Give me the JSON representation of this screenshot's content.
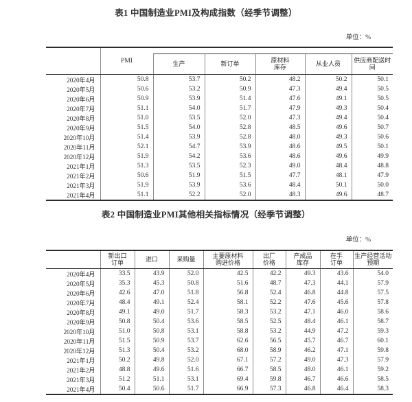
{
  "table1": {
    "title": "表1 中国制造业PMI及构成指数（经季节调整）",
    "unit": "单位：%",
    "pmi_header": "PMI",
    "sub_headers": [
      "生产",
      "新订单",
      "原材料库存",
      "从业人员",
      "供应商配送时间"
    ],
    "rows": [
      {
        "date": "2020年4月",
        "values": [
          "50.8",
          "53.7",
          "50.2",
          "48.2",
          "50.2",
          "50.1"
        ]
      },
      {
        "date": "2020年5月",
        "values": [
          "50.6",
          "53.2",
          "50.9",
          "47.3",
          "49.4",
          "50.5"
        ]
      },
      {
        "date": "2020年6月",
        "values": [
          "50.9",
          "53.9",
          "51.4",
          "47.6",
          "49.1",
          "50.5"
        ]
      },
      {
        "date": "2020年7月",
        "values": [
          "51.1",
          "54.0",
          "51.7",
          "47.9",
          "49.3",
          "50.4"
        ]
      },
      {
        "date": "2020年8月",
        "values": [
          "51.0",
          "53.5",
          "52.0",
          "47.3",
          "49.4",
          "50.4"
        ]
      },
      {
        "date": "2020年9月",
        "values": [
          "51.5",
          "54.0",
          "52.8",
          "48.5",
          "49.6",
          "50.7"
        ]
      },
      {
        "date": "2020年10月",
        "values": [
          "51.4",
          "53.9",
          "52.8",
          "48.0",
          "49.3",
          "50.6"
        ]
      },
      {
        "date": "2020年11月",
        "values": [
          "52.1",
          "54.7",
          "53.9",
          "48.6",
          "49.5",
          "50.1"
        ]
      },
      {
        "date": "2020年12月",
        "values": [
          "51.9",
          "54.2",
          "53.6",
          "48.6",
          "49.6",
          "49.9"
        ]
      },
      {
        "date": "2021年1月",
        "values": [
          "51.3",
          "53.5",
          "52.3",
          "49.0",
          "48.4",
          "48.8"
        ]
      },
      {
        "date": "2021年2月",
        "values": [
          "50.6",
          "51.9",
          "51.5",
          "47.7",
          "48.1",
          "47.9"
        ]
      },
      {
        "date": "2021年3月",
        "values": [
          "51.9",
          "53.9",
          "53.6",
          "48.4",
          "50.1",
          "50.0"
        ]
      },
      {
        "date": "2021年4月",
        "values": [
          "51.1",
          "52.2",
          "52.0",
          "48.3",
          "49.6",
          "48.7"
        ]
      }
    ]
  },
  "table2": {
    "title": "表2 中国制造业PMI其他相关指标情况（经季节调整）",
    "unit": "单位：%",
    "headers": [
      "新出口订单",
      "进口",
      "采购量",
      "主要原材料购进价格",
      "出厂价格",
      "产成品库存",
      "在手订单",
      "生产经营活动预期"
    ],
    "rows": [
      {
        "date": "2020年4月",
        "values": [
          "33.5",
          "43.9",
          "52.0",
          "42.5",
          "42.2",
          "49.3",
          "43.6",
          "54.0"
        ]
      },
      {
        "date": "2020年5月",
        "values": [
          "35.3",
          "45.3",
          "50.8",
          "51.6",
          "48.7",
          "47.3",
          "44.1",
          "57.9"
        ]
      },
      {
        "date": "2020年6月",
        "values": [
          "42.6",
          "47.0",
          "51.8",
          "56.8",
          "52.4",
          "46.8",
          "44.8",
          "57.5"
        ]
      },
      {
        "date": "2020年7月",
        "values": [
          "48.4",
          "49.1",
          "52.4",
          "58.1",
          "52.2",
          "47.6",
          "45.6",
          "57.8"
        ]
      },
      {
        "date": "2020年8月",
        "values": [
          "49.1",
          "49.0",
          "51.7",
          "58.3",
          "53.2",
          "47.1",
          "46.0",
          "58.6"
        ]
      },
      {
        "date": "2020年9月",
        "values": [
          "50.8",
          "50.4",
          "53.6",
          "58.5",
          "52.5",
          "48.4",
          "46.1",
          "58.7"
        ]
      },
      {
        "date": "2020年10月",
        "values": [
          "51.0",
          "50.8",
          "53.1",
          "58.8",
          "53.2",
          "44.9",
          "47.2",
          "59.3"
        ]
      },
      {
        "date": "2020年11月",
        "values": [
          "51.5",
          "50.9",
          "53.7",
          "62.6",
          "56.5",
          "45.7",
          "46.7",
          "60.1"
        ]
      },
      {
        "date": "2020年12月",
        "values": [
          "51.3",
          "50.4",
          "53.2",
          "68.0",
          "58.9",
          "46.2",
          "47.1",
          "59.8"
        ]
      },
      {
        "date": "2021年1月",
        "values": [
          "50.2",
          "49.8",
          "52.0",
          "67.1",
          "57.2",
          "49.0",
          "47.3",
          "57.9"
        ]
      },
      {
        "date": "2021年2月",
        "values": [
          "48.8",
          "49.6",
          "51.6",
          "66.7",
          "58.5",
          "48.0",
          "46.1",
          "59.2"
        ]
      },
      {
        "date": "2021年3月",
        "values": [
          "51.2",
          "51.1",
          "53.1",
          "69.4",
          "59.8",
          "46.7",
          "46.6",
          "58.5"
        ]
      },
      {
        "date": "2021年4月",
        "values": [
          "50.4",
          "50.6",
          "51.7",
          "66.9",
          "57.3",
          "46.8",
          "46.4",
          "58.3"
        ]
      }
    ]
  }
}
